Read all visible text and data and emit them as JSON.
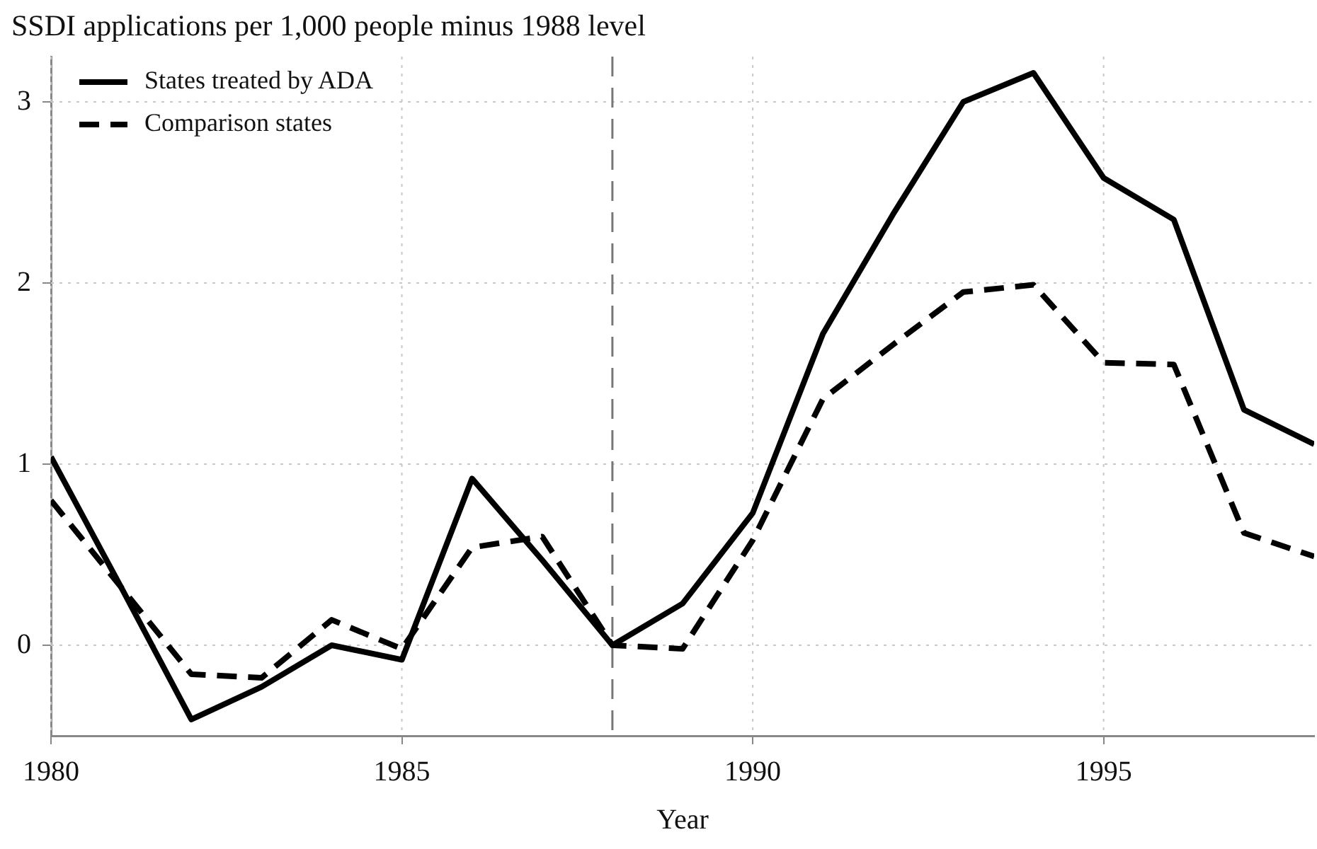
{
  "chart_data": {
    "type": "line",
    "title": "SSDI applications per 1,000 people minus 1988 level",
    "xlabel": "Year",
    "x": [
      1980,
      1981,
      1982,
      1983,
      1984,
      1985,
      1986,
      1987,
      1988,
      1989,
      1990,
      1991,
      1992,
      1993,
      1994,
      1995,
      1996,
      1997,
      1998
    ],
    "series": [
      {
        "name": "States treated by ADA",
        "color": "#000000",
        "line_style": "solid",
        "values": [
          1.04,
          0.32,
          -0.41,
          -0.23,
          0.0,
          -0.08,
          0.92,
          0.47,
          0.0,
          0.23,
          0.73,
          1.72,
          2.38,
          3.0,
          3.16,
          2.58,
          2.35,
          1.3,
          1.11
        ]
      },
      {
        "name": "Comparison states",
        "color": "#000000",
        "line_style": "dashed",
        "values": [
          0.8,
          0.32,
          -0.16,
          -0.18,
          0.14,
          -0.02,
          0.54,
          0.6,
          0.0,
          -0.02,
          0.58,
          1.36,
          1.66,
          1.95,
          1.99,
          1.56,
          1.55,
          0.62,
          0.49
        ]
      }
    ],
    "xlim": [
      1980,
      1998
    ],
    "xticks": [
      1980,
      1985,
      1990,
      1995
    ],
    "ylim": [
      -0.5,
      3.25
    ],
    "yticks": [
      0,
      1,
      2,
      3
    ],
    "ref_lines": [
      {
        "axis": "x",
        "value": 1988,
        "color": "#777777",
        "line_style": "dashed"
      }
    ],
    "grid": true,
    "legend": "top left",
    "marker": "none"
  }
}
